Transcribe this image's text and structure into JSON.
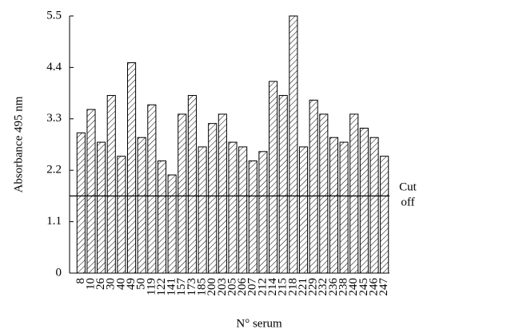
{
  "chart_data": {
    "type": "bar",
    "xlabel": "N° serum",
    "ylabel": "Absorbance 495 nm",
    "categories": [
      "8",
      "10",
      "26",
      "30",
      "40",
      "49",
      "50",
      "119",
      "122",
      "141",
      "157",
      "173",
      "185",
      "200",
      "203",
      "205",
      "206",
      "207",
      "212",
      "214",
      "215",
      "218",
      "221",
      "229",
      "232",
      "236",
      "238",
      "240",
      "245",
      "246",
      "247"
    ],
    "values": [
      3.0,
      3.5,
      2.8,
      3.8,
      2.5,
      4.5,
      2.9,
      3.6,
      2.4,
      2.1,
      3.4,
      3.8,
      2.7,
      3.2,
      3.4,
      2.8,
      2.7,
      2.4,
      2.6,
      4.1,
      3.8,
      5.5,
      2.7,
      3.7,
      3.4,
      2.9,
      2.8,
      3.4,
      3.1,
      2.9,
      2.5
    ],
    "color": "#000000",
    "ylim": [
      0,
      5.5
    ],
    "yticks": [
      0,
      1.1,
      2.2,
      3.3,
      4.4,
      5.5
    ],
    "cutoff": {
      "value": 1.65,
      "label": "Cut off"
    }
  }
}
